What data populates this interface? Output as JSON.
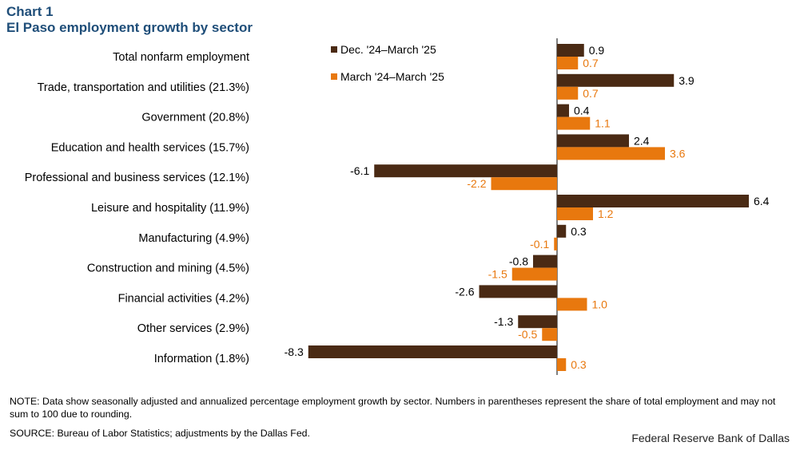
{
  "header": {
    "chart_label": "Chart 1",
    "title": "El Paso employment growth by sector"
  },
  "footer": {
    "note": "NOTE: Data show seasonally adjusted and annualized percentage employment growth by sector. Numbers in parentheses represent the share of total employment and may not sum to 100 due to rounding.",
    "source": "SOURCE: Bureau of Labor Statistics; adjustments by the Dallas Fed.",
    "credit": "Federal Reserve Bank of Dallas"
  },
  "colors": {
    "series1": "#4a2a14",
    "series2": "#e8780e",
    "title": "#1f4e79"
  },
  "chart_data": {
    "type": "bar",
    "orientation": "horizontal",
    "title": "El Paso employment growth by sector",
    "categories": [
      "Total nonfarm employment",
      "Trade, transportation and utilities (21.3%)",
      "Government (20.8%)",
      "Education and health services (15.7%)",
      "Professional and business services (12.1%)",
      "Leisure and hospitality (11.9%)",
      "Manufacturing (4.9%)",
      "Construction and mining (4.5%)",
      "Financial activities (4.2%)",
      "Other services (2.9%)",
      "Information (1.8%)"
    ],
    "series": [
      {
        "name": "Dec. '24–March '25",
        "color": "#4a2a14",
        "values": [
          0.9,
          3.9,
          0.4,
          2.4,
          -6.1,
          6.4,
          0.3,
          -0.8,
          -2.6,
          -1.3,
          -8.3
        ]
      },
      {
        "name": "March '24–March '25",
        "color": "#e8780e",
        "values": [
          0.7,
          0.7,
          1.1,
          3.6,
          -2.2,
          1.2,
          -0.1,
          -1.5,
          1.0,
          -0.5,
          0.3
        ]
      }
    ],
    "xlim": [
      -8.3,
      8.0
    ],
    "grid": false,
    "legend_position": "top-center"
  }
}
